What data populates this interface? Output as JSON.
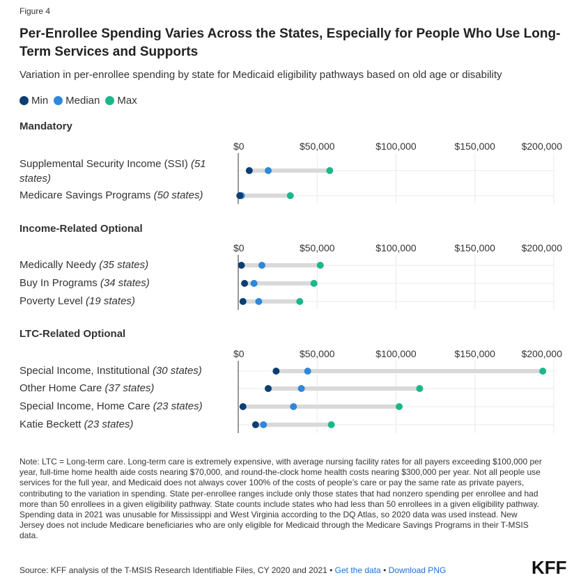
{
  "figure_label": "Figure 4",
  "title": "Per-Enrollee Spending Varies Across the States, Especially for People Who Use Long-Term Services and Supports",
  "subtitle": "Variation in per-enrollee spending by state for Medicaid eligibility pathways based on old age or disability",
  "colors": {
    "min": "#0b3f73",
    "median": "#2d88d9",
    "max": "#1cb68a",
    "range_bar": "#d9d9d9",
    "grid": "#e8e8e8",
    "axis": "#333333"
  },
  "chart_data": {
    "type": "dot-range",
    "legend": [
      {
        "name": "Min",
        "color": "#0b3f73"
      },
      {
        "name": "Median",
        "color": "#2d88d9"
      },
      {
        "name": "Max",
        "color": "#1cb68a"
      }
    ],
    "x_ticks": [
      0,
      50000,
      100000,
      150000,
      200000
    ],
    "x_tick_labels": [
      "$0",
      "$50,000",
      "$100,000",
      "$150,000",
      "$200,000"
    ],
    "xlim": [
      0,
      200000
    ],
    "grid": true,
    "groups": [
      {
        "name": "Mandatory",
        "rows": [
          {
            "label": "Supplemental Security Income (SSI)",
            "count": "(51 states)",
            "min": 7000,
            "median": 19000,
            "max": 58000
          },
          {
            "label": "Medicare Savings Programs",
            "count": "(50 states)",
            "min": 1000,
            "median": 2000,
            "max": 33000
          }
        ]
      },
      {
        "name": "Income-Related Optional",
        "rows": [
          {
            "label": "Medically Needy",
            "count": "(35 states)",
            "min": 2000,
            "median": 15000,
            "max": 52000
          },
          {
            "label": "Buy In Programs",
            "count": "(34 states)",
            "min": 4000,
            "median": 10000,
            "max": 48000
          },
          {
            "label": "Poverty Level",
            "count": "(19 states)",
            "min": 3000,
            "median": 13000,
            "max": 39000
          }
        ]
      },
      {
        "name": "LTC-Related Optional",
        "rows": [
          {
            "label": "Special Income, Institutional",
            "count": "(30 states)",
            "min": 24000,
            "median": 44000,
            "max": 193000
          },
          {
            "label": "Other Home Care",
            "count": "(37 states)",
            "min": 19000,
            "median": 40000,
            "max": 115000
          },
          {
            "label": "Special Income, Home Care",
            "count": "(23 states)",
            "min": 3000,
            "median": 35000,
            "max": 102000
          },
          {
            "label": "Katie Beckett",
            "count": "(23 states)",
            "min": 11000,
            "median": 16000,
            "max": 59000
          }
        ]
      }
    ]
  },
  "notes": "Note: LTC = Long-term care. Long-term care is extremely expensive, with average nursing facility rates for all payers exceeding $100,000 per year, full-time home health aide costs nearing $70,000, and round-the-clock home health costs nearing $300,000 per year. Not all people use services for the full year, and Medicaid does not always cover 100% of the costs of people’s care or pay the same rate as private payers, contributing to the variation in spending. State per-enrollee ranges include only those states that had nonzero spending per enrollee and had more than 50 enrollees in a given eligibility pathway. State counts include states who had less than 50 enrollees in a given eligibility pathway. Spending data in 2021 was unusable for Mississippi and West Virginia according to the DQ Atlas, so 2020 data was used instead. New Jersey does not include Medicare beneficiaries who are only eligible for Medicaid through the Medicare Savings Programs in their T-MSIS data.",
  "source": {
    "text": "Source: KFF analysis of the T-MSIS Research Identifiable Files, CY 2020 and 2021 •",
    "separator": "•",
    "get_data_label": "Get the data",
    "download_label": "Download PNG"
  },
  "logo": "KFF"
}
